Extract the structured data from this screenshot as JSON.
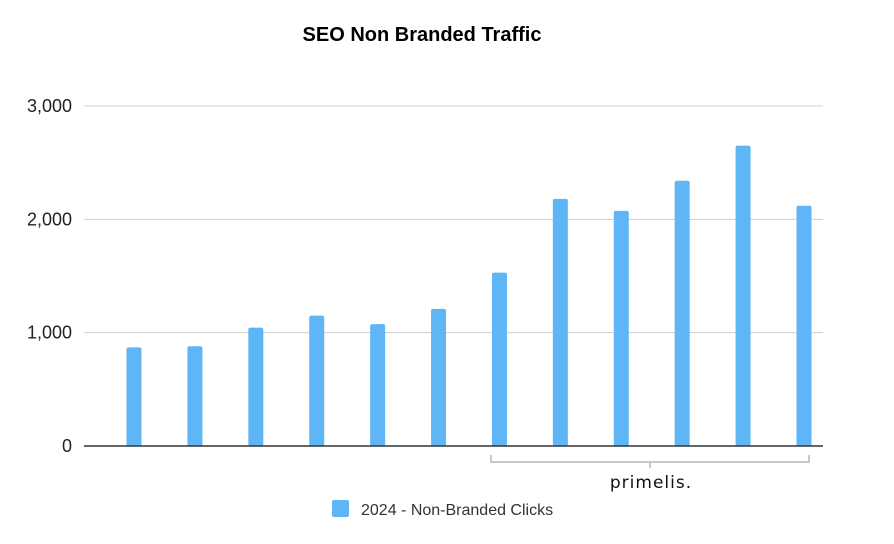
{
  "chart_data": {
    "type": "bar",
    "title": "SEO Non Branded Traffic",
    "xlabel": "",
    "ylabel": "",
    "categories": [
      "",
      "",
      "",
      "",
      "",
      "",
      "",
      "",
      "",
      "",
      "",
      ""
    ],
    "series": [
      {
        "name": "2024 - Non-Branded Clicks",
        "color": "#5eb6f7",
        "values": [
          870,
          880,
          1045,
          1150,
          1075,
          1210,
          1530,
          2180,
          2075,
          2340,
          2650,
          2120
        ]
      }
    ],
    "ylim": [
      0,
      3000
    ],
    "yticks": [
      "0",
      "1,000",
      "2,000",
      "3,000"
    ],
    "ytick_values": [
      0,
      1000,
      2000,
      3000
    ],
    "grid": true,
    "legend_position": "bottom"
  },
  "watermark": {
    "text": "primelis."
  }
}
